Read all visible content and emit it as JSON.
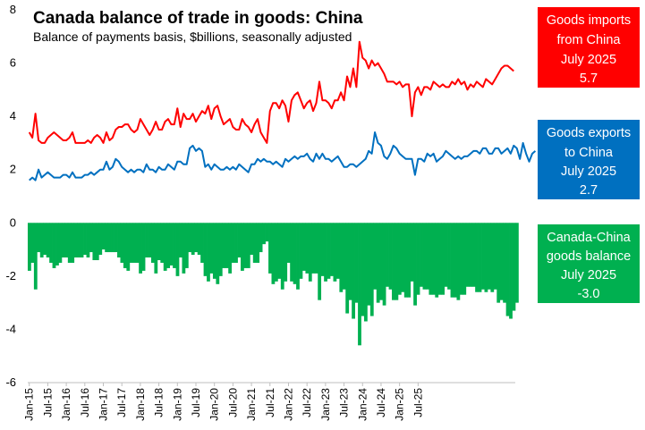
{
  "chart_data": {
    "type": "line+bar",
    "title": "Canada balance of trade in goods: China",
    "subtitle": "Balance of payments basis, $billions, seasonally adjusted",
    "ylim": [
      -6,
      8
    ],
    "yticks": [
      -6,
      -4,
      -2,
      0,
      2,
      4,
      6,
      8
    ],
    "x_tick_labels": [
      "Jan-15",
      "Jul-15",
      "Jan-16",
      "Jul-16",
      "Jan-17",
      "Jul-17",
      "Jan-18",
      "Jul-18",
      "Jan-19",
      "Jul-19",
      "Jan-20",
      "Jul-20",
      "Jan-21",
      "Jul-21",
      "Jan-22",
      "Jul-22",
      "Jan-23",
      "Jul-23",
      "Jan-24",
      "Jul-24",
      "Jan-25",
      "Jul-25"
    ],
    "start_month": "Jan-15",
    "end_month": "Jul-25",
    "series": [
      {
        "name": "Goods imports from China",
        "kind": "line",
        "color": "#ff0000",
        "values": [
          3.4,
          3.2,
          4.1,
          3.1,
          3.0,
          3.0,
          3.2,
          3.3,
          3.4,
          3.3,
          3.2,
          3.1,
          3.1,
          3.2,
          3.4,
          3.0,
          3.0,
          3.0,
          3.0,
          3.1,
          3.0,
          3.2,
          3.3,
          3.2,
          3.0,
          3.4,
          3.1,
          3.2,
          3.5,
          3.6,
          3.6,
          3.7,
          3.7,
          3.5,
          3.4,
          3.5,
          3.9,
          3.7,
          3.5,
          3.3,
          3.5,
          3.8,
          3.5,
          3.5,
          3.8,
          3.9,
          3.7,
          3.7,
          4.3,
          3.6,
          4.1,
          3.9,
          3.9,
          4.1,
          3.8,
          4.0,
          4.2,
          4.1,
          4.4,
          3.9,
          4.3,
          4.4,
          4.0,
          3.7,
          3.8,
          3.9,
          3.6,
          3.5,
          3.5,
          3.9,
          3.7,
          3.6,
          3.4,
          3.7,
          3.9,
          3.4,
          3.2,
          3.0,
          4.2,
          4.5,
          4.5,
          4.3,
          4.6,
          4.4,
          3.8,
          4.6,
          4.8,
          4.9,
          4.6,
          4.3,
          4.5,
          4.6,
          4.2,
          4.5,
          5.3,
          4.6,
          4.6,
          4.5,
          4.3,
          4.6,
          4.6,
          4.9,
          4.6,
          5.5,
          5.1,
          5.8,
          5.1,
          6.8,
          6.2,
          6.1,
          5.8,
          6.1,
          5.9,
          6.0,
          5.8,
          5.6,
          5.3,
          5.3,
          5.3,
          5.2,
          5.3,
          5.1,
          5.2,
          5.2,
          4.0,
          4.9,
          5.1,
          4.8,
          5.1,
          5.1,
          5.0,
          5.3,
          5.2,
          5.1,
          5.2,
          5.1,
          5.1,
          5.3,
          5.2,
          5.4,
          5.2,
          5.3,
          5.0,
          5.2,
          5.1,
          5.3,
          5.2,
          5.1,
          5.4,
          5.3,
          5.2,
          5.4,
          5.6,
          5.8,
          5.9,
          5.9,
          5.8,
          5.7
        ]
      },
      {
        "name": "Goods exports to China",
        "kind": "line",
        "color": "#0070c0",
        "values": [
          1.6,
          1.7,
          1.6,
          2.0,
          1.7,
          1.8,
          1.9,
          1.8,
          1.7,
          1.7,
          1.7,
          1.8,
          1.8,
          1.7,
          1.9,
          1.7,
          1.7,
          1.7,
          1.8,
          1.8,
          1.9,
          1.8,
          1.9,
          2.0,
          2.0,
          2.3,
          2.0,
          2.1,
          2.4,
          2.3,
          2.1,
          2.0,
          1.9,
          2.0,
          1.9,
          2.0,
          2.0,
          1.9,
          2.2,
          2.0,
          2.0,
          1.9,
          2.1,
          2.0,
          2.0,
          2.2,
          2.1,
          2.0,
          2.3,
          2.3,
          2.2,
          2.2,
          2.8,
          2.9,
          2.7,
          2.8,
          2.7,
          2.1,
          2.2,
          2.0,
          2.2,
          2.1,
          2.0,
          2.0,
          2.1,
          2.0,
          2.1,
          2.0,
          2.2,
          2.1,
          2.0,
          1.9,
          2.2,
          2.2,
          2.4,
          2.3,
          2.4,
          2.3,
          2.3,
          2.2,
          2.3,
          2.2,
          2.1,
          2.4,
          2.3,
          2.4,
          2.5,
          2.4,
          2.5,
          2.5,
          2.6,
          2.4,
          2.3,
          2.6,
          2.4,
          2.6,
          2.4,
          2.4,
          2.3,
          2.4,
          2.5,
          2.3,
          2.1,
          2.1,
          2.2,
          2.2,
          2.1,
          2.2,
          2.3,
          2.4,
          2.7,
          2.6,
          3.4,
          3.0,
          2.9,
          2.5,
          2.4,
          2.6,
          2.9,
          2.8,
          2.6,
          2.5,
          2.4,
          2.4,
          2.4,
          1.8,
          2.4,
          2.4,
          2.3,
          2.6,
          2.5,
          2.6,
          2.3,
          2.4,
          2.5,
          2.7,
          2.6,
          2.5,
          2.4,
          2.5,
          2.4,
          2.5,
          2.5,
          2.6,
          2.7,
          2.7,
          2.6,
          2.8,
          2.8,
          2.6,
          2.6,
          2.8,
          2.8,
          2.6,
          2.7,
          2.8,
          2.6,
          2.9,
          2.8,
          2.4,
          3.0,
          2.6,
          2.3,
          2.6,
          2.7
        ]
      },
      {
        "name": "Canada-China goods balance",
        "kind": "bar",
        "color": "#00b050",
        "values": [
          -1.8,
          -1.5,
          -2.5,
          -1.1,
          -1.3,
          -1.2,
          -1.3,
          -1.5,
          -1.7,
          -1.6,
          -1.5,
          -1.3,
          -1.3,
          -1.5,
          -1.5,
          -1.3,
          -1.3,
          -1.3,
          -1.2,
          -1.3,
          -1.1,
          -1.4,
          -1.4,
          -1.2,
          -1.0,
          -1.1,
          -1.1,
          -1.1,
          -1.1,
          -1.3,
          -1.5,
          -1.7,
          -1.8,
          -1.5,
          -1.5,
          -1.5,
          -1.9,
          -1.8,
          -1.3,
          -1.3,
          -1.5,
          -1.9,
          -1.4,
          -1.5,
          -1.8,
          -1.7,
          -1.6,
          -1.7,
          -2.0,
          -1.3,
          -1.9,
          -1.7,
          -1.1,
          -1.2,
          -1.1,
          -1.2,
          -1.5,
          -2.0,
          -2.2,
          -1.9,
          -2.1,
          -2.3,
          -2.0,
          -1.7,
          -1.7,
          -1.9,
          -1.5,
          -1.5,
          -1.3,
          -1.8,
          -1.7,
          -1.7,
          -1.2,
          -1.5,
          -1.5,
          -1.1,
          -0.8,
          -0.7,
          -1.9,
          -2.3,
          -2.2,
          -2.1,
          -2.5,
          -2.2,
          -1.5,
          -2.2,
          -2.3,
          -2.5,
          -2.1,
          -1.8,
          -1.9,
          -2.2,
          -1.9,
          -1.9,
          -2.9,
          -2.0,
          -2.2,
          -2.1,
          -2.0,
          -2.2,
          -2.1,
          -2.6,
          -2.5,
          -3.4,
          -2.9,
          -3.6,
          -3.0,
          -4.6,
          -3.5,
          -3.7,
          -3.1,
          -3.5,
          -2.5,
          -3.0,
          -2.9,
          -3.1,
          -2.4,
          -2.5,
          -2.9,
          -2.9,
          -2.7,
          -2.6,
          -2.8,
          -2.8,
          -2.2,
          -3.1,
          -2.7,
          -2.4,
          -2.5,
          -2.5,
          -2.7,
          -2.7,
          -2.8,
          -2.7,
          -2.7,
          -2.4,
          -2.5,
          -2.8,
          -2.8,
          -2.9,
          -2.7,
          -2.7,
          -2.4,
          -2.4,
          -2.4,
          -2.6,
          -2.6,
          -2.5,
          -2.6,
          -2.5,
          -2.6,
          -2.5,
          -3.0,
          -2.9,
          -3.0,
          -3.5,
          -3.6,
          -3.3,
          -3.0
        ]
      }
    ],
    "annotations": {
      "imports": {
        "lines": [
          "Goods imports",
          "from China",
          "July 2025",
          "5.7"
        ],
        "color": "#ff0000"
      },
      "exports": {
        "lines": [
          "Goods exports",
          "to China",
          "July 2025",
          "2.7"
        ],
        "color": "#0070c0"
      },
      "balance": {
        "lines": [
          "Canada-China",
          "goods balance",
          "July 2025",
          "-3.0"
        ],
        "color": "#00b050"
      }
    }
  }
}
